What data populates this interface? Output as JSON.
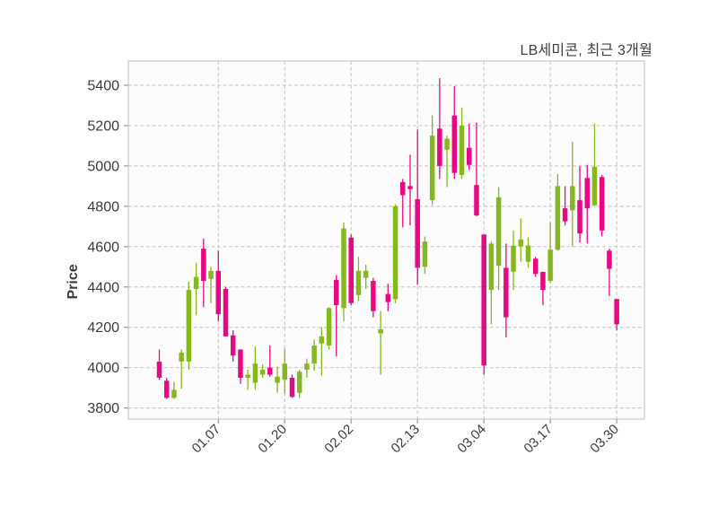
{
  "header": {
    "title": "LB세미콘, 최근 3개월"
  },
  "chart_data": {
    "type": "candlestick",
    "title": "LB세미콘, 최근 3개월",
    "ylabel": "Price",
    "xlabel": "",
    "grid": true,
    "legend_position": "none",
    "ylim": [
      3745,
      5520
    ],
    "yticks": [
      3800,
      4000,
      4200,
      4400,
      4600,
      4800,
      5000,
      5200,
      5400
    ],
    "xticks": [
      {
        "index": 8,
        "label": "01.07"
      },
      {
        "index": 17,
        "label": "01.20"
      },
      {
        "index": 26,
        "label": "02.02"
      },
      {
        "index": 35,
        "label": "02.13"
      },
      {
        "index": 44,
        "label": "03.04"
      },
      {
        "index": 53,
        "label": "03.17"
      },
      {
        "index": 62,
        "label": "03.30"
      }
    ],
    "colors": {
      "up": "#85b71e",
      "down": "#e60884",
      "grid": "#cbcbcb",
      "axis_border": "#d4d4d4",
      "tick": "#9a9a9a",
      "text": "#3b3b3b",
      "plot_bg": "#fcfcfc"
    },
    "candles_format": [
      "open",
      "high",
      "low",
      "close"
    ],
    "candles": [
      [
        4030,
        4090,
        3940,
        3950
      ],
      [
        3935,
        3950,
        3845,
        3850
      ],
      [
        3850,
        3930,
        3845,
        3890
      ],
      [
        4030,
        4090,
        3895,
        4075
      ],
      [
        4030,
        4425,
        3990,
        4385
      ],
      [
        4390,
        4520,
        4260,
        4450
      ],
      [
        4590,
        4640,
        4300,
        4430
      ],
      [
        4440,
        4500,
        4320,
        4480
      ],
      [
        4480,
        4580,
        4230,
        4265
      ],
      [
        4390,
        4400,
        4155,
        4155
      ],
      [
        4160,
        4185,
        4030,
        4060
      ],
      [
        4090,
        4090,
        3920,
        3950
      ],
      [
        3950,
        3990,
        3890,
        3965
      ],
      [
        3925,
        4105,
        3890,
        4020
      ],
      [
        3965,
        4015,
        3950,
        3990
      ],
      [
        4000,
        4110,
        3955,
        3965
      ],
      [
        3925,
        4005,
        3875,
        3955
      ],
      [
        3940,
        4095,
        3870,
        4020
      ],
      [
        3950,
        3965,
        3850,
        3855
      ],
      [
        3875,
        3990,
        3850,
        3980
      ],
      [
        3990,
        4045,
        3950,
        4020
      ],
      [
        4020,
        4140,
        3985,
        4110
      ],
      [
        4120,
        4200,
        3960,
        4155
      ],
      [
        4110,
        4300,
        4090,
        4295
      ],
      [
        4435,
        4460,
        4055,
        4310
      ],
      [
        4295,
        4720,
        4230,
        4690
      ],
      [
        4645,
        4660,
        4310,
        4320
      ],
      [
        4360,
        4550,
        4330,
        4480
      ],
      [
        4445,
        4510,
        4390,
        4480
      ],
      [
        4430,
        4445,
        4250,
        4280
      ],
      [
        4170,
        4280,
        3965,
        4190
      ],
      [
        4365,
        4415,
        4280,
        4325
      ],
      [
        4340,
        4810,
        4320,
        4800
      ],
      [
        4920,
        4935,
        4695,
        4855
      ],
      [
        4900,
        5055,
        4705,
        4885
      ],
      [
        4835,
        5180,
        4410,
        4495
      ],
      [
        4500,
        4650,
        4465,
        4625
      ],
      [
        4830,
        5250,
        4805,
        5150
      ],
      [
        5185,
        5435,
        4935,
        5000
      ],
      [
        5080,
        5150,
        4895,
        5135
      ],
      [
        5250,
        5395,
        4935,
        4965
      ],
      [
        4955,
        5290,
        4935,
        5200
      ],
      [
        5090,
        5210,
        4980,
        5005
      ],
      [
        4905,
        5215,
        4750,
        4755
      ],
      [
        4660,
        4660,
        3965,
        4010
      ],
      [
        4385,
        4625,
        4215,
        4615
      ],
      [
        4505,
        4895,
        4385,
        4845
      ],
      [
        4495,
        4615,
        4150,
        4250
      ],
      [
        4475,
        4680,
        4385,
        4605
      ],
      [
        4600,
        4740,
        4525,
        4635
      ],
      [
        4525,
        4645,
        4495,
        4605
      ],
      [
        4540,
        4550,
        4450,
        4465
      ],
      [
        4475,
        4475,
        4310,
        4385
      ],
      [
        4430,
        4720,
        4420,
        4585
      ],
      [
        4585,
        4960,
        4580,
        4900
      ],
      [
        4790,
        4900,
        4705,
        4725
      ],
      [
        4780,
        5120,
        4600,
        4900
      ],
      [
        4830,
        5000,
        4620,
        4665
      ],
      [
        4940,
        5005,
        4615,
        4790
      ],
      [
        4805,
        5210,
        4800,
        4995
      ],
      [
        4945,
        4955,
        4650,
        4680
      ],
      [
        4580,
        4590,
        4355,
        4490
      ],
      [
        4340,
        4340,
        4185,
        4215
      ]
    ]
  }
}
